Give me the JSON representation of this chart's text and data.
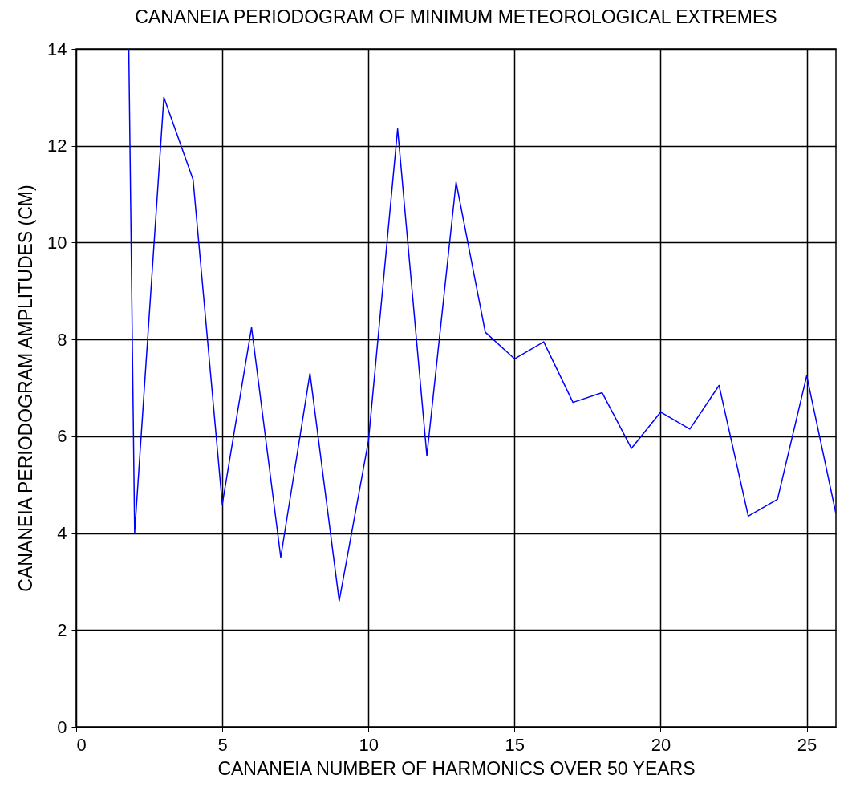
{
  "chart_data": {
    "type": "line",
    "title": "CANANEIA PERIODOGRAM OF MINIMUM METEOROLOGICAL EXTREMES",
    "xlabel": "CANANEIA NUMBER OF HARMONICS OVER 50 YEARS",
    "ylabel": "CANANEIA PERIODOGRAM AMPLITUDES (CM)",
    "x": [
      1.8,
      2,
      3,
      4,
      5,
      6,
      7,
      8,
      9,
      10,
      11,
      12,
      13,
      14,
      15,
      16,
      17,
      18,
      19,
      20,
      21,
      22,
      23,
      24,
      25,
      26
    ],
    "series": [
      {
        "color": "#0000ff",
        "values": [
          14,
          4.0,
          13.0,
          11.3,
          4.6,
          8.25,
          3.5,
          7.3,
          2.6,
          5.9,
          12.35,
          5.6,
          11.25,
          8.15,
          7.6,
          7.95,
          6.7,
          6.9,
          5.75,
          6.5,
          6.15,
          7.05,
          4.35,
          4.7,
          7.25,
          4.4
        ]
      }
    ],
    "xlim": [
      0,
      26
    ],
    "xticks": [
      0,
      5,
      10,
      15,
      20,
      25
    ],
    "ylim": [
      0,
      14
    ],
    "yticks": [
      0,
      2,
      4,
      6,
      8,
      10,
      12,
      14
    ],
    "grid": true,
    "legend": false,
    "marker": "none",
    "line_style": "solid"
  }
}
